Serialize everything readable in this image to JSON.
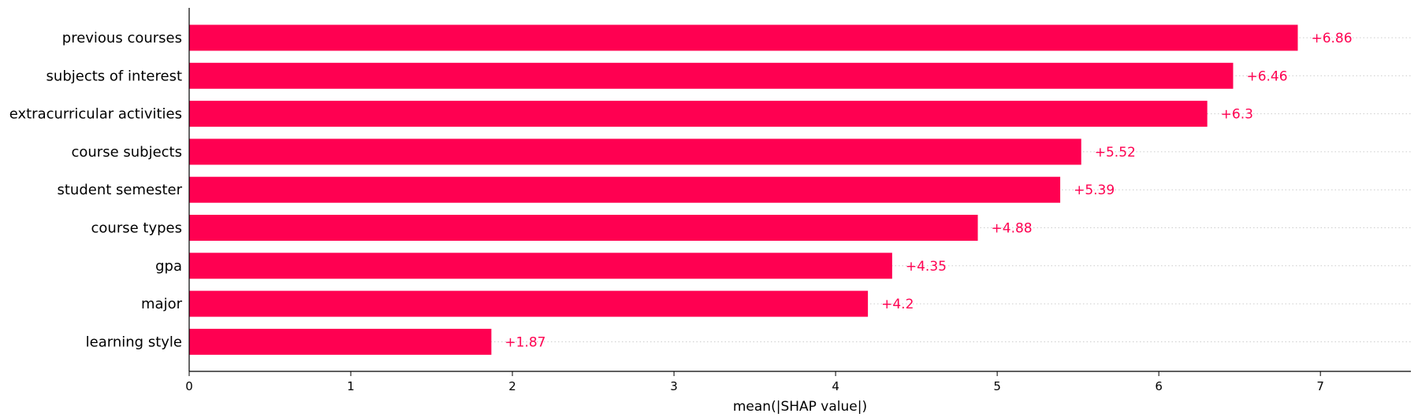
{
  "chart_data": {
    "type": "bar",
    "orientation": "horizontal",
    "categories": [
      "previous courses",
      "subjects of interest",
      "extracurricular activities",
      "course subjects",
      "student semester",
      "course types",
      "gpa",
      "major",
      "learning style"
    ],
    "values": [
      6.86,
      6.46,
      6.3,
      5.52,
      5.39,
      4.88,
      4.35,
      4.2,
      1.87
    ],
    "value_labels": [
      "+6.86",
      "+6.46",
      "+6.3",
      "+5.52",
      "+5.39",
      "+4.88",
      "+4.35",
      "+4.2",
      "+1.87"
    ],
    "xlabel": "mean(|SHAP value|)",
    "ylabel": "",
    "title": "",
    "xlim": [
      0,
      7.56
    ],
    "xticks": [
      "0",
      "1",
      "2",
      "3",
      "4",
      "5",
      "6",
      "7"
    ],
    "grid": "dotted row guides",
    "legend": "none",
    "bar_color": "#ff0051"
  }
}
